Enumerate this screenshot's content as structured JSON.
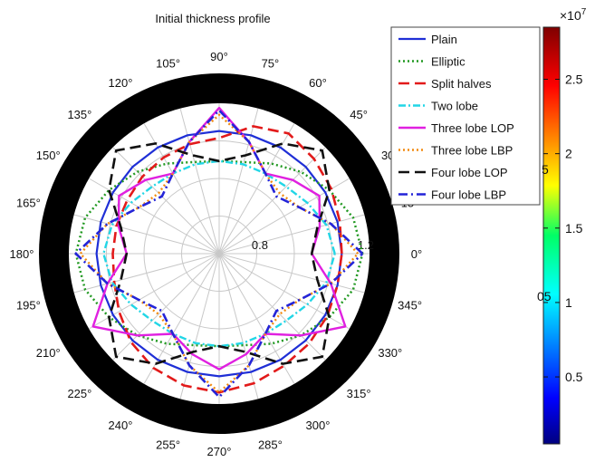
{
  "chart_data": {
    "type": "polar-line",
    "title": "Initial thickness profile",
    "angle_ticks": [
      0,
      15,
      30,
      45,
      60,
      75,
      90,
      105,
      120,
      135,
      150,
      165,
      180,
      195,
      210,
      225,
      240,
      255,
      270,
      285,
      300,
      315,
      330,
      345
    ],
    "angle_unit": "°",
    "radial_ticks": [
      "0.8",
      "1.2"
    ],
    "radial_range": [
      0.6,
      1.25
    ],
    "angles": [
      0,
      15,
      30,
      45,
      60,
      75,
      90,
      105,
      120,
      135,
      150,
      165,
      180,
      195,
      210,
      225,
      240,
      255,
      270,
      285,
      300,
      315,
      330,
      345,
      360
    ],
    "legend_position": "top-right",
    "series": [
      {
        "name": "Plain",
        "color": "#1f2fd6",
        "dash": "",
        "width": 2.2,
        "values": [
          1.13,
          1.13,
          1.13,
          1.13,
          1.13,
          1.13,
          1.13,
          1.13,
          1.13,
          1.13,
          1.13,
          1.13,
          1.13,
          1.13,
          1.13,
          1.13,
          1.13,
          1.13,
          1.13,
          1.13,
          1.13,
          1.13,
          1.13,
          1.13,
          1.13
        ]
      },
      {
        "name": "Elliptic",
        "color": "#229922",
        "dash": "2 3",
        "width": 2.5,
        "values": [
          1.22,
          1.2,
          1.15,
          1.1,
          1.05,
          1.01,
          1.0,
          1.01,
          1.05,
          1.1,
          1.15,
          1.2,
          1.22,
          1.2,
          1.15,
          1.1,
          1.05,
          1.01,
          1.0,
          1.01,
          1.05,
          1.1,
          1.15,
          1.2,
          1.22
        ]
      },
      {
        "name": "Split halves",
        "color": "#e21a1a",
        "dash": "12 6",
        "width": 2.6,
        "values": [
          1.13,
          1.14,
          1.16,
          1.18,
          1.2,
          1.17,
          1.1,
          1.09,
          1.08,
          1.07,
          1.06,
          1.06,
          1.06,
          1.07,
          1.1,
          1.14,
          1.17,
          1.19,
          1.2,
          1.18,
          1.16,
          1.15,
          1.14,
          1.13,
          1.13
        ]
      },
      {
        "name": "Two lobe",
        "color": "#22d6e6",
        "dash": "8 3 2 3",
        "width": 2.4,
        "values": [
          1.1,
          1.08,
          1.04,
          1.01,
          1.0,
          1.0,
          1.0,
          1.0,
          1.0,
          1.01,
          1.04,
          1.08,
          1.1,
          1.08,
          1.04,
          1.01,
          1.0,
          1.0,
          1.0,
          1.0,
          1.0,
          1.01,
          1.04,
          1.08,
          1.1
        ]
      },
      {
        "name": "Three lobe LOP",
        "color": "#e020e0",
        "dash": "",
        "width": 2.4,
        "values": [
          1.0,
          1.05,
          1.1,
          1.05,
          1.0,
          1.1,
          1.23,
          1.1,
          1.0,
          1.05,
          1.1,
          1.05,
          1.0,
          1.1,
          1.23,
          1.1,
          1.0,
          1.05,
          1.1,
          1.05,
          1.0,
          1.1,
          1.23,
          1.1,
          1.0
        ]
      },
      {
        "name": "Three lobe LBP",
        "color": "#f28a10",
        "dash": "2 3",
        "width": 2.4,
        "values": [
          1.2,
          1.1,
          1.0,
          0.97,
          1.0,
          1.1,
          1.2,
          1.1,
          1.0,
          0.97,
          1.0,
          1.1,
          1.2,
          1.1,
          1.0,
          0.97,
          1.0,
          1.1,
          1.2,
          1.1,
          1.0,
          0.97,
          1.0,
          1.1,
          1.2
        ]
      },
      {
        "name": "Four lobe LOP",
        "color": "#111111",
        "dash": "12 6",
        "width": 2.6,
        "values": [
          1.0,
          1.04,
          1.15,
          1.23,
          1.15,
          1.04,
          1.0,
          1.04,
          1.15,
          1.23,
          1.15,
          1.04,
          1.0,
          1.04,
          1.15,
          1.23,
          1.15,
          1.04,
          1.0,
          1.04,
          1.15,
          1.23,
          1.15,
          1.04,
          1.0
        ]
      },
      {
        "name": "Four lobe LBP",
        "color": "#2424d8",
        "dash": "10 4 2 4",
        "width": 2.6,
        "values": [
          1.22,
          1.1,
          1.0,
          0.95,
          1.0,
          1.1,
          1.22,
          1.1,
          1.0,
          0.95,
          1.0,
          1.1,
          1.22,
          1.1,
          1.0,
          0.95,
          1.0,
          1.1,
          1.22,
          1.1,
          1.0,
          0.95,
          1.0,
          1.1,
          1.22
        ]
      }
    ],
    "colorbar": {
      "exponent_label": "×10",
      "exponent_power": "7",
      "tick_labels": [
        "0.5",
        "1",
        "1.5",
        "2",
        "2.5"
      ],
      "tick_values": [
        0.5,
        1.0,
        1.5,
        2.0,
        2.5
      ],
      "range": [
        0.05,
        2.85
      ],
      "colormap": "jet",
      "stray_labels": [
        "5",
        "05",
        "5"
      ]
    }
  }
}
